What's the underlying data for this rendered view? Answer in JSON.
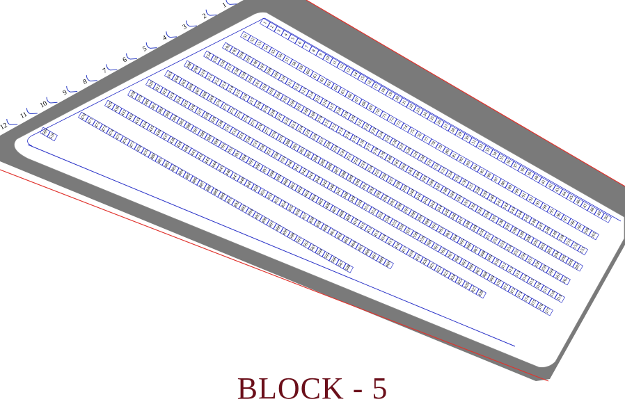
{
  "block_title": "BLOCK - 5",
  "colors": {
    "road": "#7a7a7a",
    "boundary": "#e0342e",
    "plot": "#2a32c8",
    "edge_marker": "#2a3cc4",
    "title": "#6b0f1a"
  },
  "edge_markers": [
    "12",
    "11",
    "10",
    "9",
    "8",
    "7",
    "6",
    "5",
    "4",
    "3",
    "2",
    "1"
  ],
  "rows": [
    {
      "start": 1,
      "count": 50
    },
    {
      "start": 51,
      "count": 51
    },
    {
      "start": 102,
      "count": 52
    },
    {
      "start": 154,
      "count": 54
    },
    {
      "start": 208,
      "count": 55
    },
    {
      "start": 263,
      "count": 57
    },
    {
      "start": 320,
      "count": 58
    },
    {
      "start": 378,
      "count": 51
    },
    {
      "start": 429,
      "count": 41
    },
    {
      "start": 470,
      "count": 39
    },
    {
      "start": 509,
      "count": 2
    }
  ]
}
